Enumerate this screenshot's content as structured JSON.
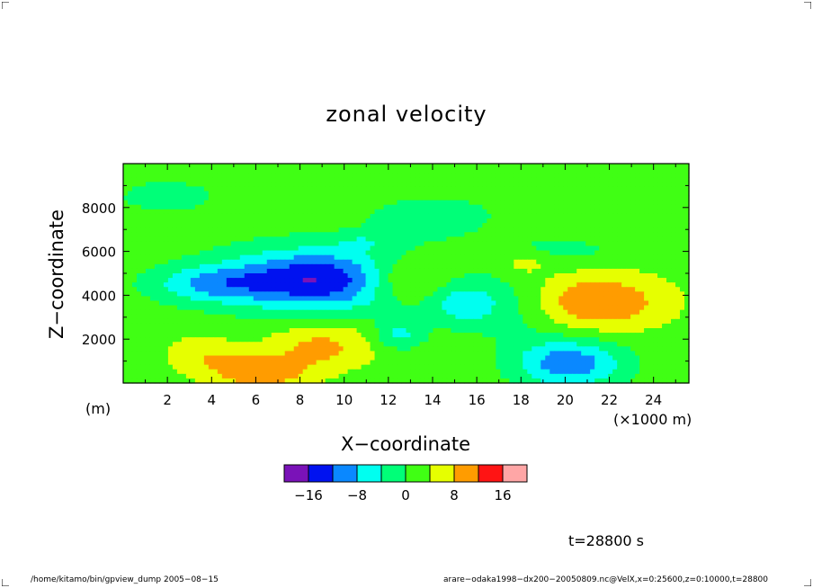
{
  "chart_data": {
    "type": "heatmap",
    "title": "zonal velocity",
    "xlabel": "X−coordinate",
    "ylabel": "Z−coordinate",
    "x_unit": "(×1000 m)",
    "y_unit": "(m)",
    "xlim": [
      0,
      25.6
    ],
    "ylim": [
      0,
      10000
    ],
    "x_ticks": [
      "2",
      "4",
      "6",
      "8",
      "10",
      "12",
      "14",
      "16",
      "18",
      "20",
      "22",
      "24"
    ],
    "y_ticks": [
      "2000",
      "4000",
      "6000",
      "8000"
    ],
    "background_value": 2,
    "features": [
      {
        "x": 8.8,
        "z": 4700,
        "rx": 4.3,
        "rz": 1400,
        "rot": 0.13,
        "amp": -18
      },
      {
        "x": 3.8,
        "z": 4500,
        "rx": 2.6,
        "rz": 800,
        "rot": 0.1,
        "amp": -8
      },
      {
        "x": 15.5,
        "z": 3600,
        "rx": 1.6,
        "rz": 1000,
        "rot": -0.5,
        "amp": -8
      },
      {
        "x": 12.5,
        "z": 2200,
        "rx": 1.1,
        "rz": 700,
        "rot": 0,
        "amp": -7
      },
      {
        "x": 20.2,
        "z": 900,
        "rx": 2.4,
        "rz": 1100,
        "rot": 0.2,
        "amp": -13
      },
      {
        "x": 10.8,
        "z": 6400,
        "rx": 1.0,
        "rz": 300,
        "rot": 0,
        "amp": -4
      },
      {
        "x": 18.0,
        "z": 3400,
        "rx": 2.0,
        "rz": 1600,
        "rot": 0,
        "amp": -4
      },
      {
        "x": 12.7,
        "z": 4700,
        "rx": 2.0,
        "rz": 1000,
        "rot": -0.3,
        "amp": 9
      },
      {
        "x": 21.4,
        "z": 3700,
        "rx": 3.2,
        "rz": 1300,
        "rot": 0.1,
        "amp": 10
      },
      {
        "x": 9.0,
        "z": 1700,
        "rx": 2.4,
        "rz": 1100,
        "rot": 0,
        "amp": 7
      },
      {
        "x": 6.2,
        "z": 500,
        "rx": 2.2,
        "rz": 800,
        "rot": 0,
        "amp": 9
      },
      {
        "x": 3.6,
        "z": 1300,
        "rx": 1.6,
        "rz": 900,
        "rot": 0,
        "amp": 5
      },
      {
        "x": 18.2,
        "z": 5500,
        "rx": 1.0,
        "rz": 500,
        "rot": 0,
        "amp": 5
      },
      {
        "x": 2.0,
        "z": 8500,
        "rx": 3.0,
        "rz": 1000,
        "rot": 0,
        "amp": -3
      },
      {
        "x": 14.0,
        "z": 7600,
        "rx": 4.0,
        "rz": 1300,
        "rot": 0,
        "amp": -3
      },
      {
        "x": 20.0,
        "z": 6000,
        "rx": 3.0,
        "rz": 700,
        "rot": 0,
        "amp": -3
      }
    ]
  },
  "colorbar": {
    "ticks": [
      "−16",
      "−8",
      "0",
      "8",
      "16"
    ],
    "bounds": [
      -20,
      -16,
      -12,
      -8,
      -4,
      0,
      4,
      8,
      12,
      16,
      20
    ],
    "colors": [
      "#7a12b8",
      "#0012f0",
      "#0a88ff",
      "#00fff0",
      "#00ff78",
      "#40ff14",
      "#e6ff00",
      "#ff9c00",
      "#ff1414",
      "#ffa6a6"
    ]
  },
  "time_label": "t=28800 s",
  "footer": {
    "left": "/home/kitamo/bin/gpview_dump  2005−08−15",
    "right": "arare−odaka1998−dx200−20050809.nc@VelX,x=0:25600,z=0:10000,t=28800"
  }
}
